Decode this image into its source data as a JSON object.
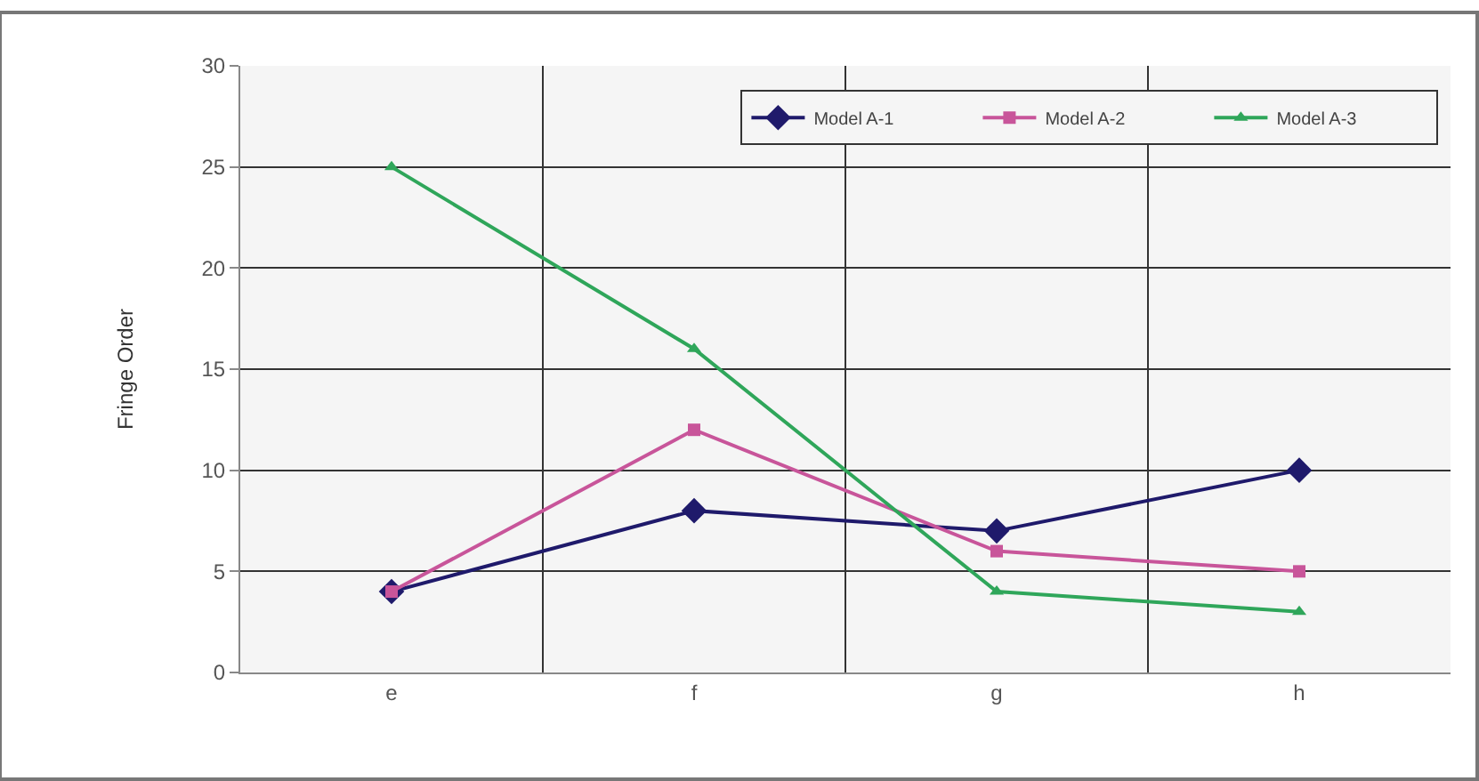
{
  "chart_data": {
    "type": "line",
    "ylabel": "Fringe Order",
    "categories": [
      "e",
      "f",
      "g",
      "h"
    ],
    "series": [
      {
        "name": "Model A-1",
        "color": "#1f1a6b",
        "values": [
          4,
          8,
          7,
          10
        ],
        "marker": "diamond"
      },
      {
        "name": "Model A-2",
        "color": "#c8559a",
        "values": [
          4,
          12,
          6,
          5
        ],
        "marker": "square"
      },
      {
        "name": "Model A-3",
        "color": "#2fa65a",
        "values": [
          25,
          16,
          4,
          3
        ],
        "marker": "triangle"
      }
    ],
    "ylim": [
      0,
      30
    ],
    "yticks": [
      0,
      5,
      10,
      15,
      20,
      25,
      30
    ],
    "grid": true,
    "legend": "top right",
    "line_style": "solid"
  }
}
